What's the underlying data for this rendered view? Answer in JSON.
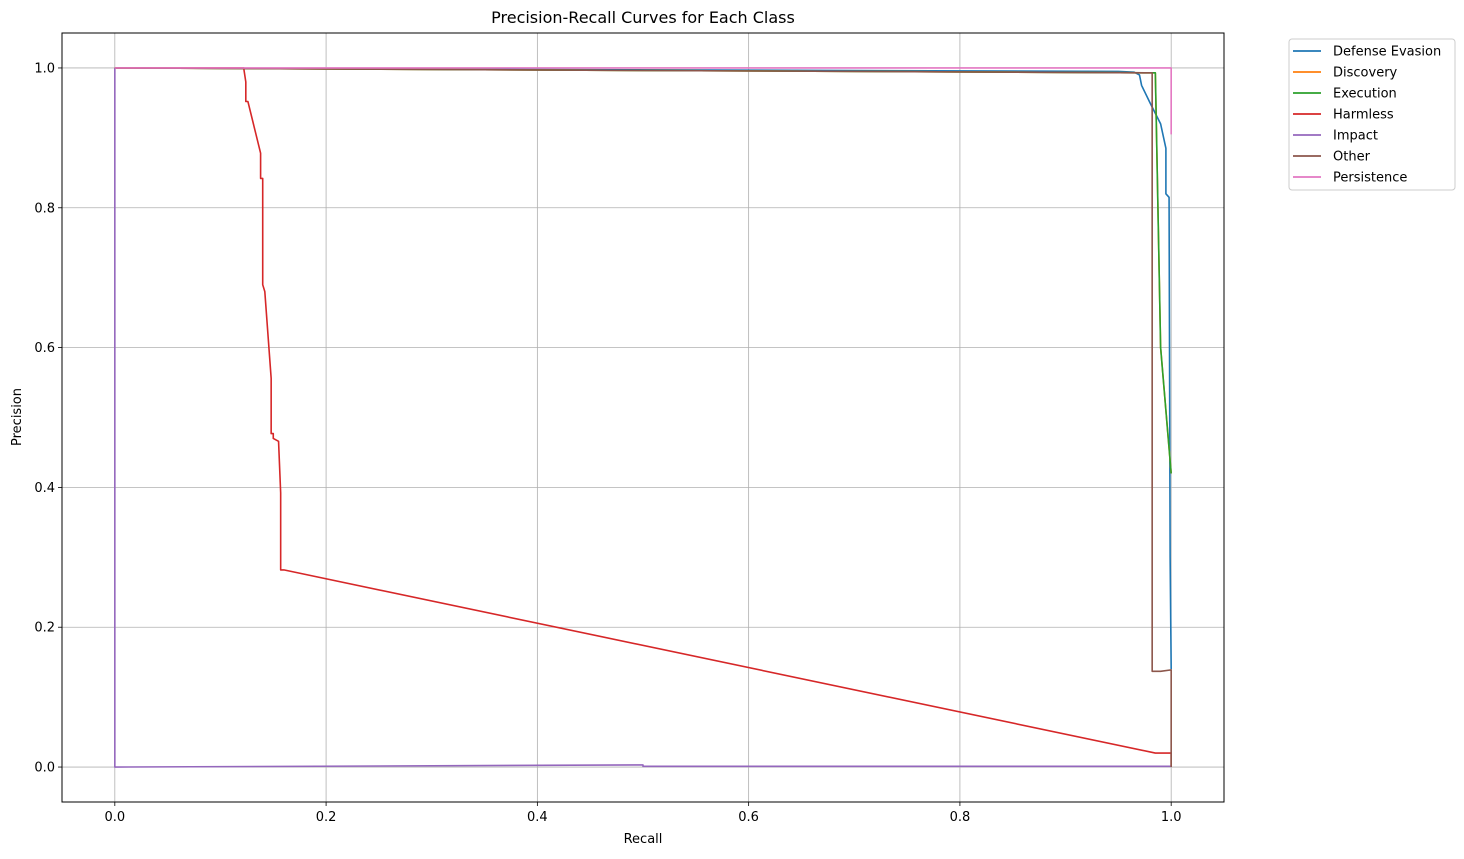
{
  "chart_data": {
    "type": "line",
    "title": "Precision-Recall Curves for Each Class",
    "xlabel": "Recall",
    "ylabel": "Precision",
    "xlim": [
      -0.05,
      1.05
    ],
    "ylim": [
      -0.05,
      1.05
    ],
    "xticks": [
      0.0,
      0.2,
      0.4,
      0.6,
      0.8,
      1.0
    ],
    "xtick_labels": [
      "0.0",
      "0.2",
      "0.4",
      "0.6",
      "0.8",
      "1.0"
    ],
    "yticks": [
      0.0,
      0.2,
      0.4,
      0.6,
      0.8,
      1.0
    ],
    "ytick_labels": [
      "0.0",
      "0.2",
      "0.4",
      "0.6",
      "0.8",
      "1.0"
    ],
    "grid": true,
    "legend_position": "outside-top-right",
    "series": [
      {
        "name": "Defense Evasion",
        "color": "#1f77b4",
        "points": [
          [
            0.0,
            1.0
          ],
          [
            0.0,
            1.0
          ],
          [
            0.95,
            0.995
          ],
          [
            0.965,
            0.994
          ],
          [
            0.97,
            0.99
          ],
          [
            0.972,
            0.975
          ],
          [
            0.98,
            0.95
          ],
          [
            0.99,
            0.92
          ],
          [
            0.995,
            0.885
          ],
          [
            0.995,
            0.82
          ],
          [
            0.998,
            0.815
          ],
          [
            0.999,
            0.3
          ],
          [
            1.0,
            0.14
          ]
        ]
      },
      {
        "name": "Discovery",
        "color": "#ff7f0e",
        "points": [
          [
            0.0,
            1.0
          ],
          [
            0.985,
            0.993
          ],
          [
            0.99,
            0.6
          ],
          [
            1.0,
            0.42
          ]
        ]
      },
      {
        "name": "Execution",
        "color": "#2ca02c",
        "points": [
          [
            0.0,
            1.0
          ],
          [
            0.985,
            0.993
          ],
          [
            0.99,
            0.6
          ],
          [
            1.0,
            0.42
          ]
        ]
      },
      {
        "name": "Harmless",
        "color": "#d62728",
        "points": [
          [
            0.0,
            1.0
          ],
          [
            0.122,
            1.0
          ],
          [
            0.124,
            0.98
          ],
          [
            0.124,
            0.952
          ],
          [
            0.126,
            0.952
          ],
          [
            0.138,
            0.878
          ],
          [
            0.138,
            0.842
          ],
          [
            0.14,
            0.842
          ],
          [
            0.14,
            0.69
          ],
          [
            0.142,
            0.68
          ],
          [
            0.148,
            0.556
          ],
          [
            0.148,
            0.477
          ],
          [
            0.15,
            0.477
          ],
          [
            0.15,
            0.47
          ],
          [
            0.155,
            0.466
          ],
          [
            0.157,
            0.392
          ],
          [
            0.157,
            0.282
          ],
          [
            0.16,
            0.282
          ],
          [
            0.985,
            0.02
          ],
          [
            1.0,
            0.02
          ],
          [
            1.0,
            0.0
          ]
        ]
      },
      {
        "name": "Impact",
        "color": "#9467bd",
        "points": [
          [
            0.0,
            1.0
          ],
          [
            0.0,
            0.0
          ],
          [
            0.5,
            0.003
          ],
          [
            0.5,
            0.001
          ],
          [
            1.0,
            0.001
          ]
        ]
      },
      {
        "name": "Other",
        "color": "#8c564b",
        "points": [
          [
            0.0,
            1.0
          ],
          [
            0.982,
            0.993
          ],
          [
            0.982,
            0.137
          ],
          [
            0.99,
            0.137
          ],
          [
            1.0,
            0.139
          ],
          [
            1.0,
            0.0
          ]
        ]
      },
      {
        "name": "Persistence",
        "color": "#e377c2",
        "points": [
          [
            0.0,
            1.0
          ],
          [
            1.0,
            1.0
          ],
          [
            1.0,
            0.905
          ]
        ]
      }
    ]
  }
}
